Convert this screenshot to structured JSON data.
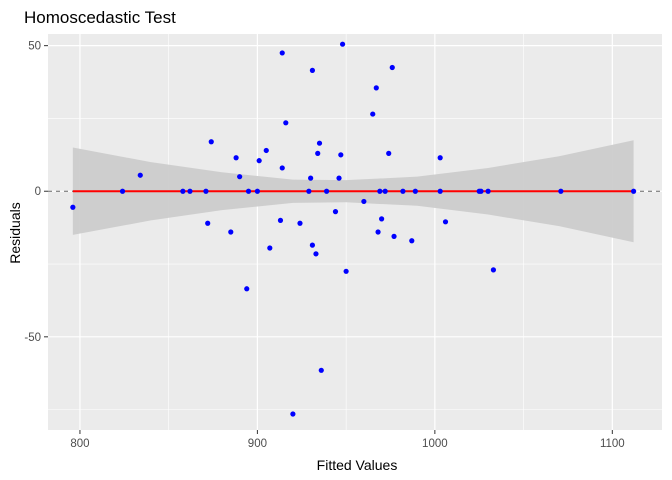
{
  "chart_data": {
    "type": "scatter",
    "title": "Homoscedastic Test",
    "xlabel": "Fitted Values",
    "ylabel": "Residuals",
    "xlim": [
      782,
      1128
    ],
    "ylim": [
      -82,
      54
    ],
    "x_ticks": [
      800,
      900,
      1000,
      1100
    ],
    "y_ticks": [
      -50,
      0,
      50
    ],
    "grid": true,
    "point_color": "#0000ff",
    "fit_line_color": "#ff0000",
    "band_color": "#cccccc",
    "reference_line": {
      "y": 0,
      "style": "dashed",
      "color": "#666666"
    },
    "fit_line": {
      "x": [
        796,
        1112
      ],
      "y": [
        0,
        0
      ]
    },
    "confidence_band": [
      {
        "x": 796,
        "low": -15,
        "high": 15
      },
      {
        "x": 840,
        "low": -10,
        "high": 10
      },
      {
        "x": 880,
        "low": -6.5,
        "high": 6.5
      },
      {
        "x": 920,
        "low": -4,
        "high": 4
      },
      {
        "x": 950,
        "low": -3.8,
        "high": 3.8
      },
      {
        "x": 990,
        "low": -5,
        "high": 5
      },
      {
        "x": 1030,
        "low": -8,
        "high": 8
      },
      {
        "x": 1070,
        "low": -12,
        "high": 12
      },
      {
        "x": 1112,
        "low": -17.5,
        "high": 17.5
      }
    ],
    "points": [
      {
        "x": 796,
        "y": -5.5
      },
      {
        "x": 824,
        "y": 0
      },
      {
        "x": 834,
        "y": 5.5
      },
      {
        "x": 858,
        "y": 0
      },
      {
        "x": 862,
        "y": 0
      },
      {
        "x": 871,
        "y": 0
      },
      {
        "x": 872,
        "y": -11
      },
      {
        "x": 874,
        "y": 17
      },
      {
        "x": 885,
        "y": -14
      },
      {
        "x": 888,
        "y": 11.5
      },
      {
        "x": 890,
        "y": 5
      },
      {
        "x": 894,
        "y": -33.5
      },
      {
        "x": 895,
        "y": 0
      },
      {
        "x": 900,
        "y": 0
      },
      {
        "x": 901,
        "y": 10.5
      },
      {
        "x": 905,
        "y": 14
      },
      {
        "x": 907,
        "y": -19.5
      },
      {
        "x": 913,
        "y": -10
      },
      {
        "x": 914,
        "y": 47.5
      },
      {
        "x": 914,
        "y": 8
      },
      {
        "x": 916,
        "y": 23.5
      },
      {
        "x": 920,
        "y": -76.5
      },
      {
        "x": 924,
        "y": -11
      },
      {
        "x": 929,
        "y": 0
      },
      {
        "x": 930,
        "y": 4.5
      },
      {
        "x": 931,
        "y": 41.5
      },
      {
        "x": 931,
        "y": -18.5
      },
      {
        "x": 933,
        "y": -21.5
      },
      {
        "x": 934,
        "y": 13
      },
      {
        "x": 935,
        "y": 16.5
      },
      {
        "x": 936,
        "y": -61.5
      },
      {
        "x": 939,
        "y": 0
      },
      {
        "x": 944,
        "y": -7
      },
      {
        "x": 946,
        "y": 4.5
      },
      {
        "x": 947,
        "y": 12.5
      },
      {
        "x": 948,
        "y": 50.5
      },
      {
        "x": 950,
        "y": -27.5
      },
      {
        "x": 960,
        "y": -3.5
      },
      {
        "x": 965,
        "y": 26.5
      },
      {
        "x": 967,
        "y": 35.5
      },
      {
        "x": 968,
        "y": -14
      },
      {
        "x": 969,
        "y": 0
      },
      {
        "x": 970,
        "y": -9.5
      },
      {
        "x": 972,
        "y": 0
      },
      {
        "x": 974,
        "y": 13
      },
      {
        "x": 976,
        "y": 42.5
      },
      {
        "x": 977,
        "y": -15.5
      },
      {
        "x": 982,
        "y": 0
      },
      {
        "x": 987,
        "y": -17
      },
      {
        "x": 989,
        "y": 0
      },
      {
        "x": 1003,
        "y": 11.5
      },
      {
        "x": 1003,
        "y": 0
      },
      {
        "x": 1006,
        "y": -10.5
      },
      {
        "x": 1025,
        "y": 0
      },
      {
        "x": 1026,
        "y": 0
      },
      {
        "x": 1030,
        "y": 0
      },
      {
        "x": 1033,
        "y": -27
      },
      {
        "x": 1071,
        "y": 0
      },
      {
        "x": 1112,
        "y": 0
      }
    ]
  }
}
